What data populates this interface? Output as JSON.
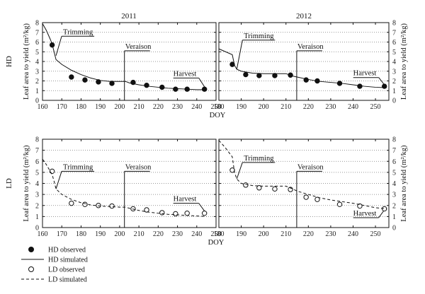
{
  "chart_data": [
    {
      "type": "scatter",
      "title": "2011",
      "row_label": "HD",
      "xlabel": "DOY",
      "ylabel": "Leaf area to yield (m²/kg)",
      "xlim": [
        160,
        250
      ],
      "ylim": [
        0,
        8
      ],
      "xticks": [
        160,
        170,
        180,
        190,
        200,
        210,
        220,
        230,
        240,
        250
      ],
      "yticks": [
        0,
        1,
        2,
        3,
        4,
        5,
        6,
        7,
        8
      ],
      "grid": "horizontal dotted",
      "series": [
        {
          "name": "HD observed",
          "style": "filled-circle",
          "x": [
            165,
            175,
            182,
            189,
            196,
            207,
            214,
            222,
            229,
            235,
            244
          ],
          "y": [
            5.7,
            2.4,
            2.1,
            1.9,
            1.75,
            1.85,
            1.55,
            1.35,
            1.15,
            1.15,
            1.15
          ]
        },
        {
          "name": "HD simulated",
          "style": "solid",
          "x": [
            160,
            162,
            164,
            165,
            166,
            167,
            170,
            175,
            180,
            185,
            190,
            195,
            200,
            203,
            205,
            210,
            215,
            220,
            225,
            230,
            235,
            240,
            245
          ],
          "y": [
            7.9,
            7.2,
            6.3,
            5.8,
            5.0,
            4.2,
            3.7,
            3.1,
            2.65,
            2.3,
            2.05,
            1.95,
            1.95,
            1.95,
            1.8,
            1.6,
            1.45,
            1.35,
            1.25,
            1.2,
            1.15,
            1.1,
            1.1
          ]
        }
      ],
      "annotations": [
        {
          "text": "Trimming",
          "x": 167,
          "y": 4.6,
          "label_y": 6.6
        },
        {
          "text": "Veraison",
          "x": 202.5,
          "y": 0,
          "label_y": 5.1
        },
        {
          "text": "Harvest",
          "x": 244,
          "y": 1.4,
          "label_y": 2.3
        }
      ]
    },
    {
      "type": "scatter",
      "title": "2012",
      "row_label": "",
      "xlabel": "",
      "ylabel": "Leaf area to yield (m²/kg)",
      "xlim": [
        180,
        256
      ],
      "ylim": [
        0,
        8
      ],
      "xticks": [
        180,
        190,
        200,
        210,
        220,
        230,
        240,
        250
      ],
      "yticks": [
        0,
        1,
        2,
        3,
        4,
        5,
        6,
        7,
        8
      ],
      "grid": "horizontal dotted",
      "series": [
        {
          "name": "HD observed",
          "style": "filled-circle",
          "x": [
            186,
            192,
            198,
            205,
            212,
            219,
            224,
            234,
            243,
            254
          ],
          "y": [
            3.7,
            2.65,
            2.55,
            2.55,
            2.6,
            2.1,
            2.0,
            1.75,
            1.45,
            1.45
          ]
        },
        {
          "name": "HD simulated",
          "style": "solid",
          "x": [
            180,
            183,
            186,
            187,
            188,
            190,
            195,
            200,
            205,
            210,
            213,
            215,
            220,
            225,
            230,
            235,
            240,
            245,
            250,
            255
          ],
          "y": [
            5.3,
            5.0,
            4.7,
            3.6,
            3.2,
            3.0,
            2.8,
            2.75,
            2.75,
            2.75,
            2.5,
            2.4,
            2.15,
            1.95,
            1.85,
            1.75,
            1.6,
            1.45,
            1.35,
            1.3
          ]
        }
      ],
      "annotations": [
        {
          "text": "Trimming",
          "x": 188,
          "y": 3.2,
          "label_y": 6.2
        },
        {
          "text": "Veraison",
          "x": 214.8,
          "y": 0,
          "label_y": 5.1
        },
        {
          "text": "Harvest",
          "x": 254,
          "y": 1.6,
          "label_y": 2.35
        }
      ]
    },
    {
      "type": "scatter",
      "title": "",
      "row_label": "LD",
      "xlabel": "DOY",
      "ylabel": "Leaf area to yield (m²/kg)",
      "xlim": [
        160,
        250
      ],
      "ylim": [
        0,
        8
      ],
      "xticks": [
        160,
        170,
        180,
        190,
        200,
        210,
        220,
        230,
        240,
        250
      ],
      "yticks": [
        0,
        1,
        2,
        3,
        4,
        5,
        6,
        7,
        8
      ],
      "grid": "horizontal dotted",
      "series": [
        {
          "name": "LD observed",
          "style": "open-circle",
          "x": [
            165,
            175,
            182,
            189,
            196,
            207,
            214,
            222,
            229,
            235,
            244
          ],
          "y": [
            5.1,
            2.2,
            2.1,
            2.0,
            1.95,
            1.7,
            1.6,
            1.35,
            1.25,
            1.3,
            1.3
          ]
        },
        {
          "name": "LD simulated",
          "style": "dashed",
          "x": [
            160,
            162,
            164,
            165,
            166,
            167,
            170,
            175,
            180,
            185,
            190,
            195,
            200,
            203,
            205,
            210,
            215,
            220,
            225,
            230,
            235,
            240,
            245
          ],
          "y": [
            6.2,
            5.7,
            5.1,
            4.8,
            4.2,
            3.5,
            3.0,
            2.55,
            2.25,
            2.05,
            1.95,
            1.9,
            1.85,
            1.85,
            1.75,
            1.55,
            1.4,
            1.3,
            1.2,
            1.15,
            1.1,
            1.05,
            1.0
          ]
        }
      ],
      "annotations": [
        {
          "text": "Trimming",
          "x": 167,
          "y": 3.5,
          "label_y": 5.1
        },
        {
          "text": "Veraison",
          "x": 202.5,
          "y": 0,
          "label_y": 5.1
        },
        {
          "text": "Harvest",
          "x": 244,
          "y": 1.5,
          "label_y": 2.2
        }
      ]
    },
    {
      "type": "scatter",
      "title": "",
      "row_label": "",
      "xlabel": "DOY",
      "ylabel": "Leaf area to yield (m²/kg)",
      "xlim": [
        180,
        256
      ],
      "ylim": [
        0,
        8
      ],
      "xticks": [
        180,
        190,
        200,
        210,
        220,
        230,
        240,
        250
      ],
      "yticks": [
        0,
        1,
        2,
        3,
        4,
        5,
        6,
        7,
        8
      ],
      "grid": "horizontal dotted",
      "series": [
        {
          "name": "LD observed",
          "style": "open-circle",
          "x": [
            186,
            192,
            198,
            205,
            212,
            219,
            224,
            234,
            243,
            254
          ],
          "y": [
            5.2,
            3.85,
            3.6,
            3.5,
            3.45,
            2.75,
            2.55,
            2.1,
            1.95,
            1.7
          ]
        },
        {
          "name": "LD simulated",
          "style": "dashed",
          "x": [
            180,
            183,
            186,
            187,
            188,
            190,
            195,
            200,
            205,
            210,
            213,
            215,
            220,
            225,
            230,
            235,
            240,
            245,
            250,
            255
          ],
          "y": [
            7.9,
            7.2,
            6.4,
            5.0,
            4.4,
            4.0,
            3.8,
            3.75,
            3.75,
            3.75,
            3.5,
            3.3,
            3.0,
            2.7,
            2.5,
            2.35,
            2.2,
            2.0,
            1.8,
            1.7
          ]
        }
      ],
      "annotations": [
        {
          "text": "Trimming",
          "x": 188,
          "y": 4.4,
          "label_y": 5.9
        },
        {
          "text": "Veraison",
          "x": 214.8,
          "y": 0,
          "label_y": 5.1
        },
        {
          "text": "Harvest",
          "x": 254,
          "y": 1.6,
          "label_y": 0.9
        }
      ]
    }
  ],
  "legend": [
    {
      "label": "HD observed",
      "style": "filled-circle"
    },
    {
      "label": "HD simulated",
      "style": "solid"
    },
    {
      "label": "LD observed",
      "style": "open-circle"
    },
    {
      "label": "LD simulated",
      "style": "dashed"
    }
  ]
}
